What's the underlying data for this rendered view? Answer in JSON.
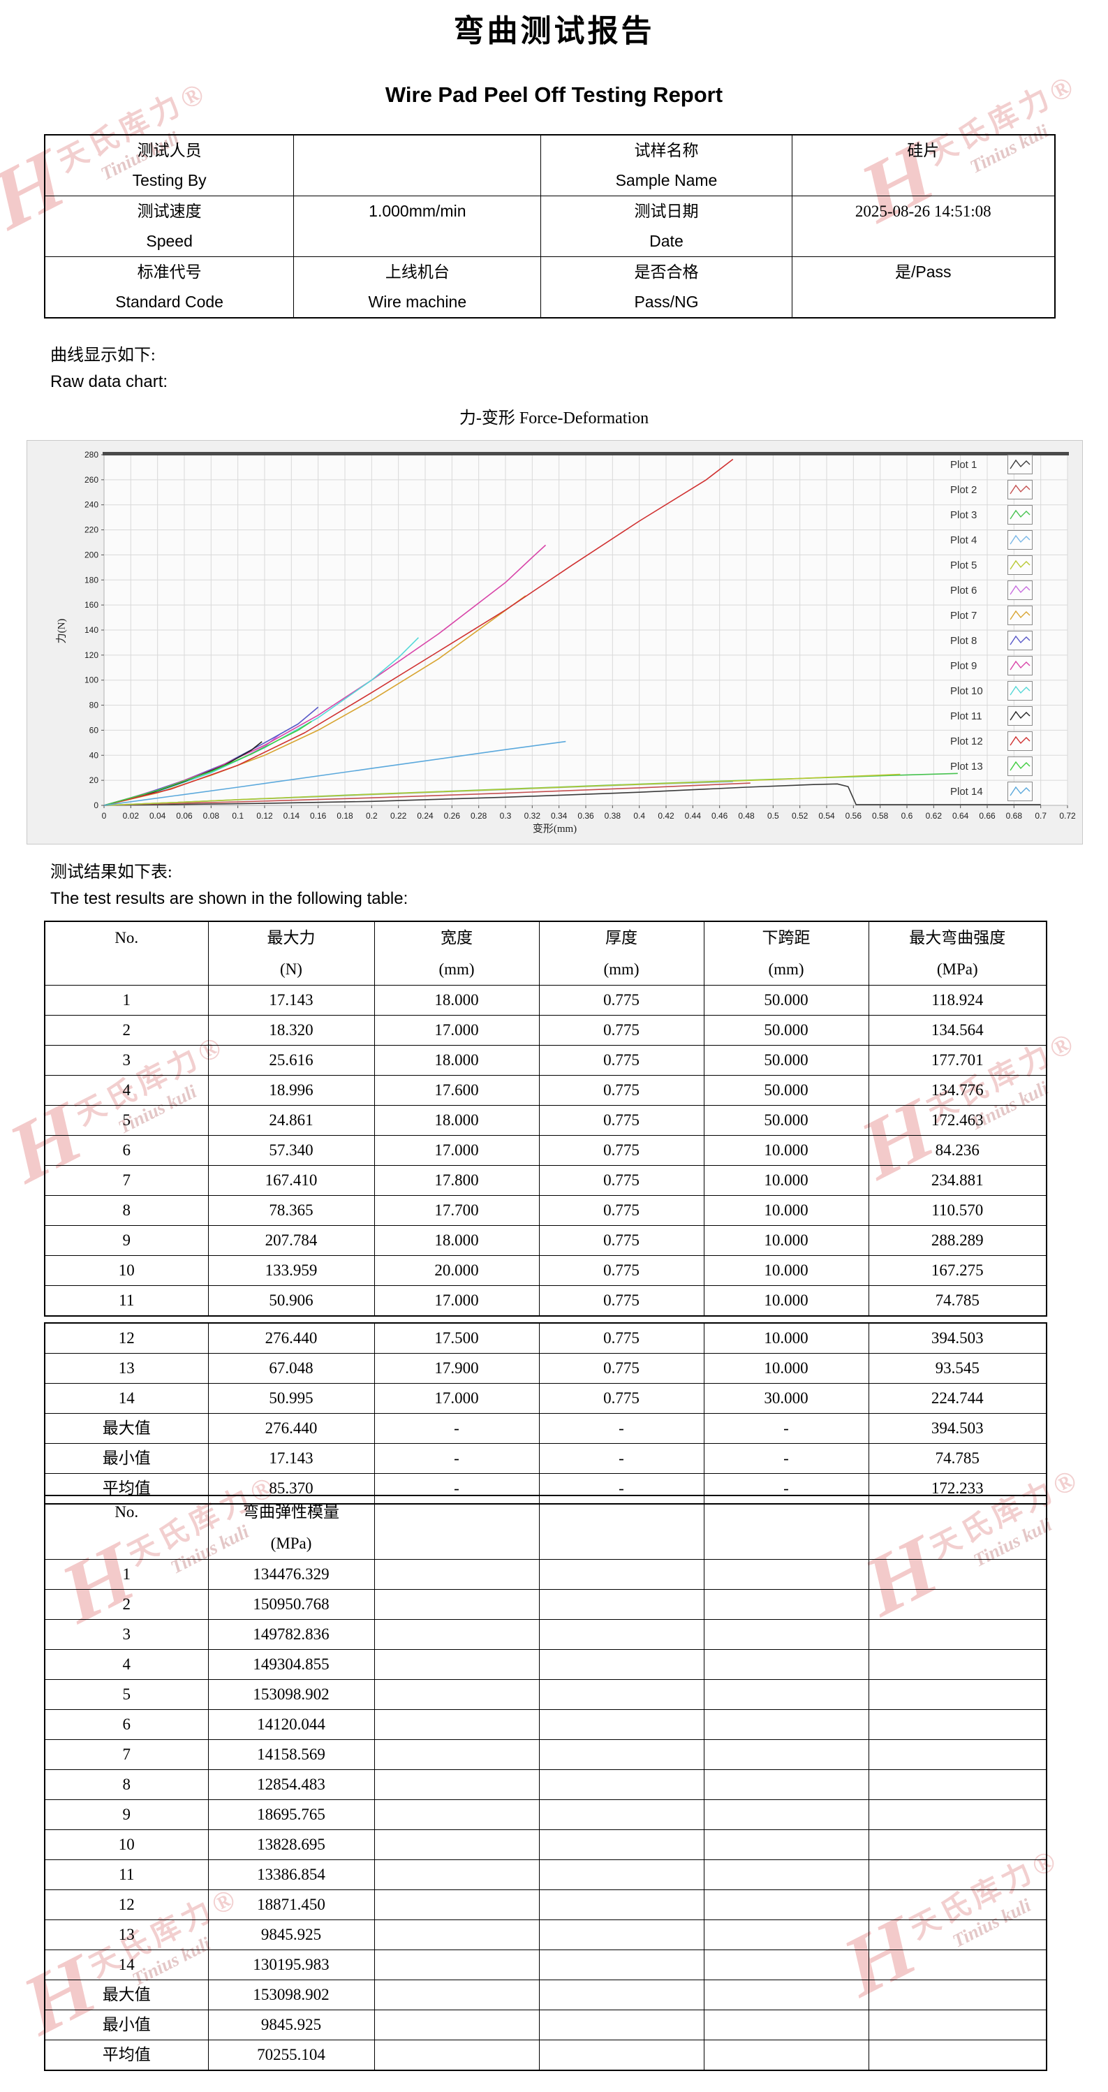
{
  "title": {
    "cn": "弯曲测试报告",
    "en": "Wire Pad Peel Off Testing Report"
  },
  "sections": {
    "curve_note_cn": "曲线显示如下:",
    "curve_note_en": "Raw data chart:",
    "results_note_cn": "测试结果如下表:",
    "results_note_en": "The test results are shown in the following table:"
  },
  "watermark": {
    "logo": "H",
    "cn": "天氏库力®",
    "en": "Tinius kuli"
  },
  "info_table": {
    "rows": [
      [
        {
          "lines": [
            {
              "t": "测试人员",
              "f": "serif"
            },
            {
              "t": "Testing By",
              "f": "sans"
            }
          ]
        },
        {
          "lines": []
        },
        {
          "lines": [
            {
              "t": "试样名称",
              "f": "serif"
            },
            {
              "t": "Sample Name",
              "f": "sans"
            }
          ]
        },
        {
          "lines": [
            {
              "t": "硅片",
              "f": "serif"
            }
          ]
        }
      ],
      [
        {
          "lines": [
            {
              "t": "测试速度",
              "f": "serif"
            },
            {
              "t": "Speed",
              "f": "sans"
            }
          ]
        },
        {
          "lines": [
            {
              "t": "1.000mm/min",
              "f": "sans"
            }
          ]
        },
        {
          "lines": [
            {
              "t": "测试日期",
              "f": "serif"
            },
            {
              "t": "Date",
              "f": "sans"
            }
          ]
        },
        {
          "lines": [
            {
              "t": "2025-08-26 14:51:08",
              "f": "serif"
            }
          ]
        }
      ],
      [
        {
          "lines": [
            {
              "t": "标准代号",
              "f": "serif"
            },
            {
              "t": "Standard Code",
              "f": "sans"
            }
          ]
        },
        {
          "lines": [
            {
              "t": "上线机台",
              "f": "serif"
            },
            {
              "t": "Wire machine",
              "f": "sans"
            }
          ]
        },
        {
          "lines": [
            {
              "t": "是否合格",
              "f": "serif"
            },
            {
              "t": "Pass/NG",
              "f": "sans"
            }
          ]
        },
        {
          "lines": [
            {
              "t": "是/Pass",
              "f": "sans"
            }
          ]
        }
      ]
    ]
  },
  "chart_data": {
    "type": "line",
    "title": "力-变形 Force-Deformation",
    "xlabel": "变形(mm)",
    "ylabel": "力(N)",
    "xlim": [
      0,
      0.72
    ],
    "ylim": [
      0,
      280
    ],
    "xtick_step": 0.02,
    "ytick_step": 20,
    "grid": true,
    "legend_position": "top-right-inside",
    "series": [
      {
        "name": "Plot 1",
        "color": "#3a3a3a",
        "points": [
          [
            0,
            0
          ],
          [
            0.06,
            0.8
          ],
          [
            0.12,
            1.6
          ],
          [
            0.2,
            3.2
          ],
          [
            0.3,
            6.5
          ],
          [
            0.4,
            10.5
          ],
          [
            0.48,
            14.5
          ],
          [
            0.53,
            16.6
          ],
          [
            0.548,
            17.1
          ],
          [
            0.556,
            15
          ],
          [
            0.562,
            0.6
          ],
          [
            0.7,
            0.6
          ]
        ]
      },
      {
        "name": "Plot 2",
        "color": "#c45050",
        "points": [
          [
            0,
            0
          ],
          [
            0.03,
            1
          ],
          [
            0.1,
            2.8
          ],
          [
            0.2,
            6
          ],
          [
            0.3,
            9.8
          ],
          [
            0.4,
            14
          ],
          [
            0.483,
            17.8
          ]
        ]
      },
      {
        "name": "Plot 3",
        "color": "#46c24e",
        "points": [
          [
            0,
            0
          ],
          [
            0.05,
            2.2
          ],
          [
            0.1,
            4.6
          ],
          [
            0.2,
            9
          ],
          [
            0.3,
            13
          ],
          [
            0.4,
            17
          ],
          [
            0.5,
            20.8
          ],
          [
            0.6,
            24.3
          ],
          [
            0.638,
            25.5
          ]
        ]
      },
      {
        "name": "Plot 4",
        "color": "#7ab8e8",
        "points": [
          [
            0,
            0
          ],
          [
            0.05,
            2.1
          ],
          [
            0.1,
            4.4
          ],
          [
            0.2,
            8.6
          ],
          [
            0.3,
            12.6
          ],
          [
            0.4,
            16.6
          ],
          [
            0.47,
            18.9
          ]
        ]
      },
      {
        "name": "Plot 5",
        "color": "#b8c832",
        "points": [
          [
            0,
            0
          ],
          [
            0.05,
            2.2
          ],
          [
            0.1,
            4.5
          ],
          [
            0.2,
            8.8
          ],
          [
            0.3,
            12.8
          ],
          [
            0.4,
            16.8
          ],
          [
            0.5,
            20.6
          ],
          [
            0.595,
            24.8
          ]
        ]
      },
      {
        "name": "Plot 6",
        "color": "#c86ee0",
        "points": [
          [
            0,
            0
          ],
          [
            0.02,
            6
          ],
          [
            0.05,
            16
          ],
          [
            0.08,
            27
          ],
          [
            0.1,
            36
          ],
          [
            0.12,
            47
          ],
          [
            0.132,
            57.3
          ]
        ]
      },
      {
        "name": "Plot 7",
        "color": "#d8a430",
        "points": [
          [
            0,
            0
          ],
          [
            0.04,
            10
          ],
          [
            0.08,
            24
          ],
          [
            0.12,
            40
          ],
          [
            0.16,
            60
          ],
          [
            0.2,
            84
          ],
          [
            0.25,
            117
          ],
          [
            0.29,
            148
          ],
          [
            0.315,
            167.4
          ]
        ]
      },
      {
        "name": "Plot 8",
        "color": "#5858c8",
        "points": [
          [
            0,
            0
          ],
          [
            0.03,
            9
          ],
          [
            0.06,
            20
          ],
          [
            0.09,
            33
          ],
          [
            0.12,
            50
          ],
          [
            0.145,
            65
          ],
          [
            0.16,
            78.4
          ]
        ]
      },
      {
        "name": "Plot 9",
        "color": "#d844a8",
        "points": [
          [
            0,
            0
          ],
          [
            0.04,
            12
          ],
          [
            0.08,
            28
          ],
          [
            0.12,
            48
          ],
          [
            0.16,
            72
          ],
          [
            0.2,
            100
          ],
          [
            0.25,
            137
          ],
          [
            0.3,
            178
          ],
          [
            0.322,
            200
          ],
          [
            0.33,
            207.8
          ]
        ]
      },
      {
        "name": "Plot 10",
        "color": "#55d8d8",
        "points": [
          [
            0,
            0
          ],
          [
            0.04,
            11
          ],
          [
            0.08,
            26
          ],
          [
            0.12,
            46
          ],
          [
            0.16,
            70
          ],
          [
            0.2,
            100
          ],
          [
            0.22,
            118
          ],
          [
            0.235,
            134
          ]
        ]
      },
      {
        "name": "Plot 11",
        "color": "#222222",
        "points": [
          [
            0,
            0
          ],
          [
            0.03,
            8
          ],
          [
            0.06,
            19
          ],
          [
            0.09,
            32
          ],
          [
            0.11,
            44
          ],
          [
            0.118,
            50.9
          ]
        ]
      },
      {
        "name": "Plot 12",
        "color": "#d03030",
        "points": [
          [
            0,
            0
          ],
          [
            0.05,
            13
          ],
          [
            0.1,
            32
          ],
          [
            0.15,
            58
          ],
          [
            0.2,
            90
          ],
          [
            0.25,
            123
          ],
          [
            0.3,
            156
          ],
          [
            0.35,
            192
          ],
          [
            0.4,
            227
          ],
          [
            0.45,
            260
          ],
          [
            0.47,
            276.4
          ]
        ]
      },
      {
        "name": "Plot 13",
        "color": "#3ecc3e",
        "points": [
          [
            0,
            0
          ],
          [
            0.04,
            12
          ],
          [
            0.08,
            27
          ],
          [
            0.11,
            41
          ],
          [
            0.13,
            52
          ],
          [
            0.145,
            60
          ],
          [
            0.155,
            67
          ]
        ]
      },
      {
        "name": "Plot 14",
        "color": "#5aa8dc",
        "points": [
          [
            0,
            0
          ],
          [
            0.1,
            14.5
          ],
          [
            0.2,
            29.5
          ],
          [
            0.3,
            44.5
          ],
          [
            0.345,
            51
          ]
        ]
      }
    ]
  },
  "results_table": {
    "headers": [
      {
        "l1": "No.",
        "l2": ""
      },
      {
        "l1": "最大力",
        "l2": "(N)"
      },
      {
        "l1": "宽度",
        "l2": "(mm)"
      },
      {
        "l1": "厚度",
        "l2": "(mm)"
      },
      {
        "l1": "下跨距",
        "l2": "(mm)"
      },
      {
        "l1": "最大弯曲强度",
        "l2": "(MPa)"
      }
    ],
    "rows": [
      [
        "1",
        "17.143",
        "18.000",
        "0.775",
        "50.000",
        "118.924"
      ],
      [
        "2",
        "18.320",
        "17.000",
        "0.775",
        "50.000",
        "134.564"
      ],
      [
        "3",
        "25.616",
        "18.000",
        "0.775",
        "50.000",
        "177.701"
      ],
      [
        "4",
        "18.996",
        "17.600",
        "0.775",
        "50.000",
        "134.776"
      ],
      [
        "5",
        "24.861",
        "18.000",
        "0.775",
        "50.000",
        "172.463"
      ],
      [
        "6",
        "57.340",
        "17.000",
        "0.775",
        "10.000",
        "84.236"
      ],
      [
        "7",
        "167.410",
        "17.800",
        "0.775",
        "10.000",
        "234.881"
      ],
      [
        "8",
        "78.365",
        "17.700",
        "0.775",
        "10.000",
        "110.570"
      ],
      [
        "9",
        "207.784",
        "18.000",
        "0.775",
        "10.000",
        "288.289"
      ],
      [
        "10",
        "133.959",
        "20.000",
        "0.775",
        "10.000",
        "167.275"
      ],
      [
        "11",
        "50.906",
        "17.000",
        "0.775",
        "10.000",
        "74.785"
      ],
      [
        "12",
        "276.440",
        "17.500",
        "0.775",
        "10.000",
        "394.503"
      ],
      [
        "13",
        "67.048",
        "17.900",
        "0.775",
        "10.000",
        "93.545"
      ],
      [
        "14",
        "50.995",
        "17.000",
        "0.775",
        "30.000",
        "224.744"
      ]
    ],
    "summary": [
      [
        "最大值",
        "276.440",
        "-",
        "-",
        "-",
        "394.503"
      ],
      [
        "最小值",
        "17.143",
        "-",
        "-",
        "-",
        "74.785"
      ],
      [
        "平均值",
        "85.370",
        "-",
        "-",
        "-",
        "172.233"
      ]
    ],
    "split_after_row": 11
  },
  "modulus_table": {
    "headers": [
      {
        "l1": "No.",
        "l2": ""
      },
      {
        "l1": "弯曲弹性模量",
        "l2": "(MPa)"
      },
      {
        "l1": "",
        "l2": ""
      },
      {
        "l1": "",
        "l2": ""
      },
      {
        "l1": "",
        "l2": ""
      },
      {
        "l1": "",
        "l2": ""
      }
    ],
    "rows": [
      [
        "1",
        "134476.329",
        "",
        "",
        "",
        ""
      ],
      [
        "2",
        "150950.768",
        "",
        "",
        "",
        ""
      ],
      [
        "3",
        "149782.836",
        "",
        "",
        "",
        ""
      ],
      [
        "4",
        "149304.855",
        "",
        "",
        "",
        ""
      ],
      [
        "5",
        "153098.902",
        "",
        "",
        "",
        ""
      ],
      [
        "6",
        "14120.044",
        "",
        "",
        "",
        ""
      ],
      [
        "7",
        "14158.569",
        "",
        "",
        "",
        ""
      ],
      [
        "8",
        "12854.483",
        "",
        "",
        "",
        ""
      ],
      [
        "9",
        "18695.765",
        "",
        "",
        "",
        ""
      ],
      [
        "10",
        "13828.695",
        "",
        "",
        "",
        ""
      ],
      [
        "11",
        "13386.854",
        "",
        "",
        "",
        ""
      ],
      [
        "12",
        "18871.450",
        "",
        "",
        "",
        ""
      ],
      [
        "13",
        "9845.925",
        "",
        "",
        "",
        ""
      ],
      [
        "14",
        "130195.983",
        "",
        "",
        "",
        ""
      ]
    ],
    "summary": [
      [
        "最大值",
        "153098.902",
        "",
        "",
        "",
        ""
      ],
      [
        "最小值",
        "9845.925",
        "",
        "",
        "",
        ""
      ],
      [
        "平均值",
        "70255.104",
        "",
        "",
        "",
        ""
      ]
    ]
  }
}
